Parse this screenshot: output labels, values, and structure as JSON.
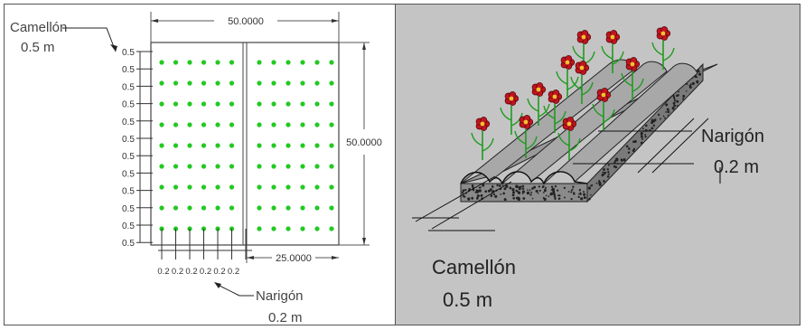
{
  "left_panel": {
    "camellon_label": "Camellón",
    "camellon_value": "0.5  m",
    "top_dimension": "50.0000",
    "right_dimension": "50.0000",
    "bottom_dimension": "25.0000",
    "row_spacing_labels": [
      "0.5",
      "0.5",
      "0.5",
      "0.5",
      "0.5",
      "0.5",
      "0.5",
      "0.5",
      "0.5",
      "0.5",
      "0.5",
      "0.5"
    ],
    "column_spacing_labels": [
      "0.2",
      "0.2",
      "0.2",
      "0.2",
      "0.2",
      "0.2"
    ],
    "narigon_label": "Narigón",
    "narigon_value": "0.2  m",
    "dot_color": "#22c922",
    "plant_grid": {
      "rows": 9,
      "cols_per_half": 6
    }
  },
  "right_panel": {
    "narigon_label": "Narigón",
    "narigon_value": "0.2  m",
    "camellon_label": "Camellón",
    "camellon_value": "0.5  m",
    "background_color": "#c4c4c4",
    "flower_color": "#c0141e",
    "stem_color": "#1e9b1e"
  }
}
